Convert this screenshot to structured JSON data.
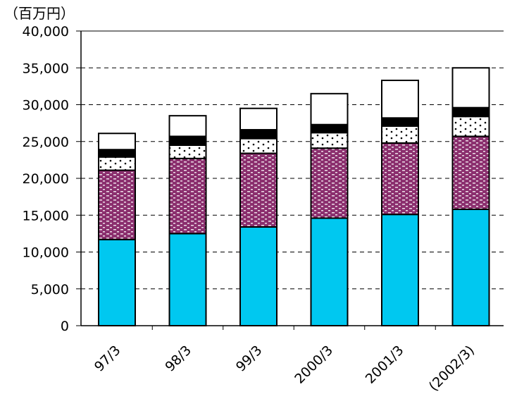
{
  "chart_data": {
    "type": "bar",
    "stacked": true,
    "unit_label": "（百万円）",
    "categories": [
      "97/3",
      "98/3",
      "99/3",
      "2000/3",
      "2001/3",
      "(2002/3)"
    ],
    "series": [
      {
        "values": [
          11700,
          12500,
          13400,
          14600,
          15100,
          15800
        ],
        "color": "#00C8F0",
        "pattern": "solid"
      },
      {
        "values": [
          9400,
          10200,
          10000,
          9500,
          9700,
          9900
        ],
        "color": "#8B2F6E",
        "pattern": "white-dashes"
      },
      {
        "values": [
          1800,
          1800,
          2000,
          2100,
          2300,
          2700
        ],
        "color": "#ffffff",
        "pattern": "dots"
      },
      {
        "values": [
          1000,
          1200,
          1200,
          1100,
          1100,
          1200
        ],
        "color": "#000000",
        "pattern": "solid"
      },
      {
        "values": [
          2200,
          2800,
          2900,
          4200,
          5100,
          5400
        ],
        "color": "#ffffff",
        "pattern": "solid"
      }
    ],
    "y_ticks": [
      "0",
      "5,000",
      "10,000",
      "15,000",
      "20,000",
      "25,000",
      "30,000",
      "35,000",
      "40,000"
    ],
    "ylim": [
      0,
      40000
    ],
    "y_step": 5000,
    "grid": "dashed-horizontal",
    "legend": "none"
  }
}
